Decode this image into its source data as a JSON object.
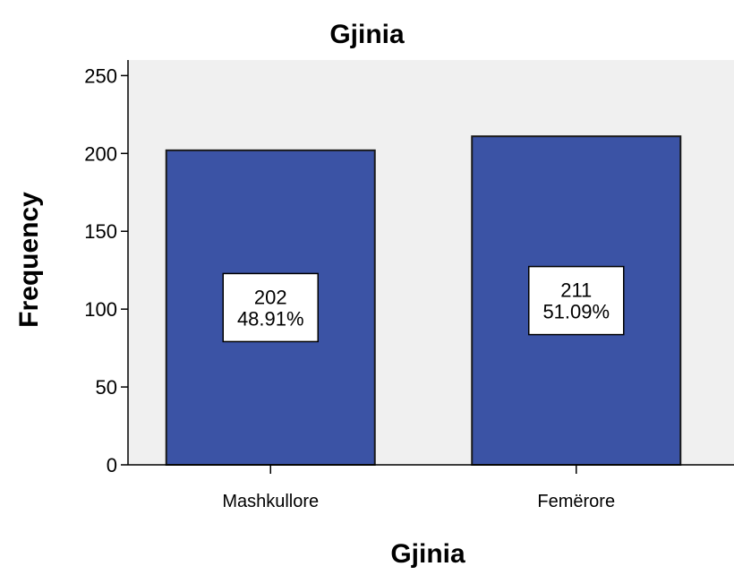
{
  "chart_data": {
    "type": "bar",
    "title": "Gjinia",
    "xlabel": "Gjinia",
    "ylabel": "Frequency",
    "categories": [
      "Mashkullore",
      "Femërore"
    ],
    "values": [
      202,
      211
    ],
    "percent_labels": [
      "48.91%",
      "51.09%"
    ],
    "ylim": [
      0,
      260
    ],
    "yticks": [
      0,
      50,
      100,
      150,
      200,
      250
    ],
    "grid": false,
    "legend": "none",
    "colors": {
      "bar": "#3b53a5",
      "plot_background": "#f0f0f0",
      "axis": "#000000"
    }
  }
}
